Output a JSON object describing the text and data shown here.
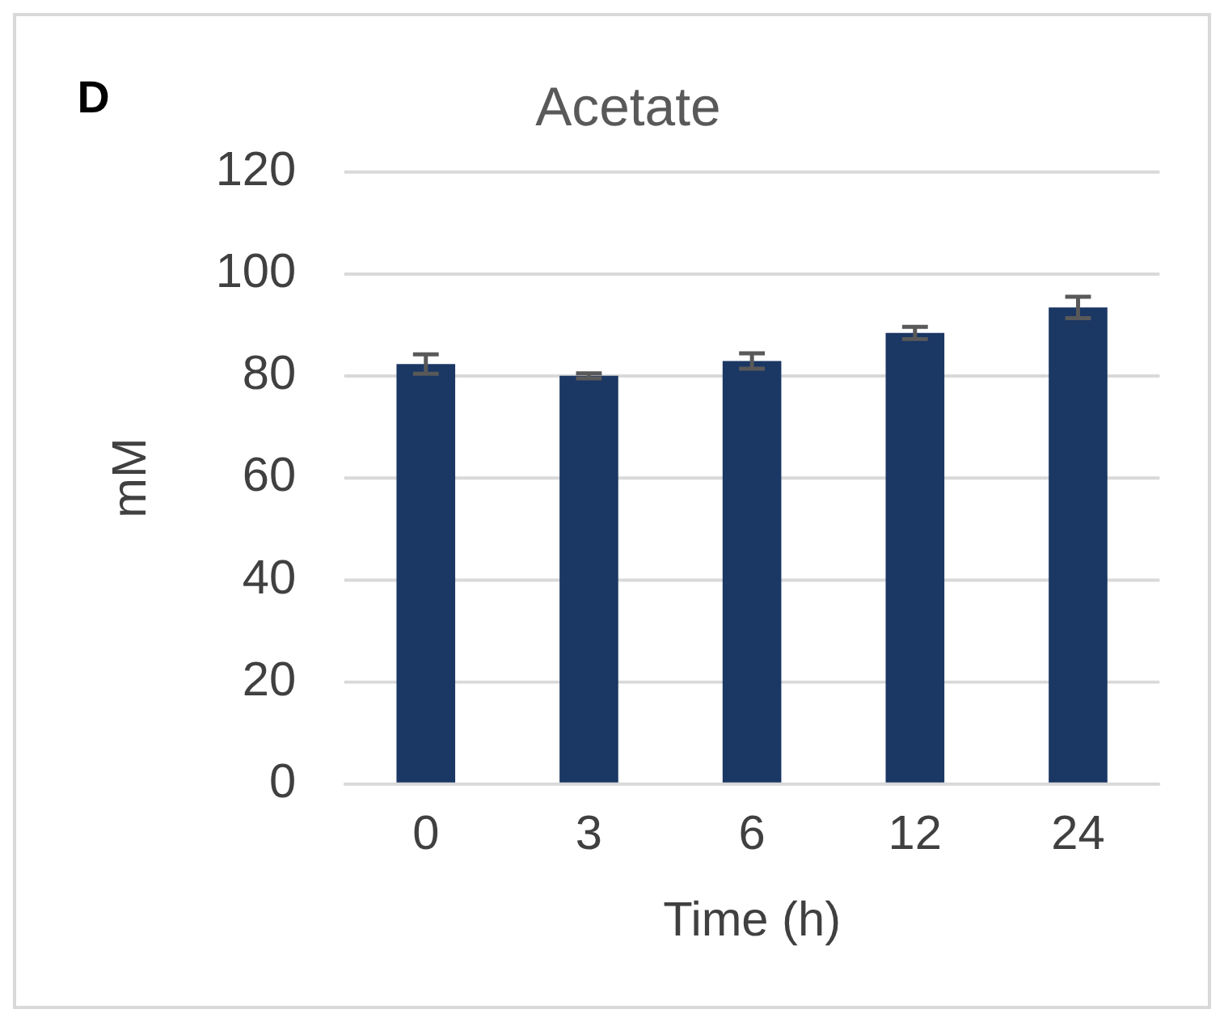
{
  "chart_data": {
    "type": "bar",
    "title": "Acetate",
    "xlabel": "Time (h)",
    "ylabel": "mM",
    "annotations": [
      "D"
    ],
    "categories": [
      "0",
      "3",
      "6",
      "12",
      "24"
    ],
    "series": [
      {
        "color": "#1b3764",
        "values": [
          82.3,
          80,
          82.9,
          88.4,
          93.4
        ],
        "errors": [
          1.9,
          0.5,
          1.5,
          1.2,
          2.1
        ]
      }
    ],
    "ylim": [
      0,
      120
    ],
    "yticks": [
      0,
      20,
      40,
      60,
      80,
      100,
      120
    ],
    "grid": "y",
    "legend": false
  }
}
